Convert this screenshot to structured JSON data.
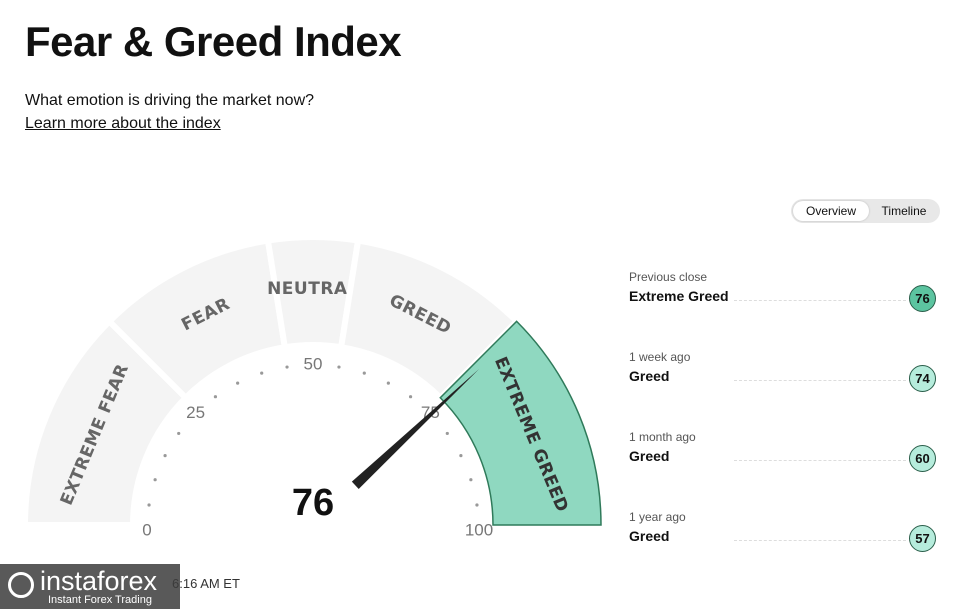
{
  "header": {
    "title": "Fear & Greed Index",
    "subtitle": "What emotion is driving the market now?",
    "link": "Learn more about the index"
  },
  "tabs": [
    "Overview",
    "Timeline"
  ],
  "gauge": {
    "value": 76,
    "ticks": [
      0,
      25,
      50,
      75,
      100
    ],
    "zones": [
      {
        "label": "EXTREME FEAR",
        "from": 0,
        "to": 25
      },
      {
        "label": "FEAR",
        "from": 25,
        "to": 45
      },
      {
        "label": "NEUTRAL",
        "from": 45,
        "to": 55
      },
      {
        "label": "GREED",
        "from": 55,
        "to": 75
      },
      {
        "label": "EXTREME GREED",
        "from": 75,
        "to": 100
      }
    ]
  },
  "history": [
    {
      "period": "Previous close",
      "rating": "Extreme Greed",
      "value": 76,
      "color": "#5cc4a0"
    },
    {
      "period": "1 week ago",
      "rating": "Greed",
      "value": 74,
      "color": "#b6ecdc"
    },
    {
      "period": "1 month ago",
      "rating": "Greed",
      "value": 60,
      "color": "#b6ecdc"
    },
    {
      "period": "1 year ago",
      "rating": "Greed",
      "value": 57,
      "color": "#b6ecdc"
    }
  ],
  "footer": {
    "updated": "6:16 AM ET"
  },
  "watermark": {
    "brand": "instaforex",
    "tagline": "Instant Forex Trading"
  }
}
